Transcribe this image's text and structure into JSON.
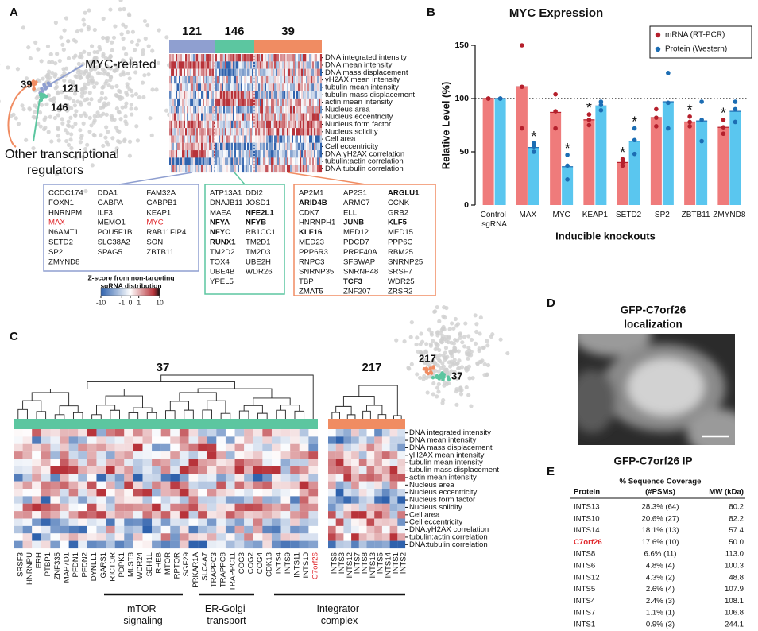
{
  "panel_a": {
    "label": "A",
    "cluster_counts": [
      121,
      146,
      39
    ],
    "cluster_colors": [
      "#8f9fd0",
      "#5cc6a0",
      "#f08c62"
    ],
    "scatter_labels": [
      39,
      121,
      146
    ],
    "myc_label": "MYC-related",
    "other_label": [
      "Other transcriptional",
      "regulators"
    ],
    "features": [
      "DNA integrated intensity",
      "DNA mean intensity",
      "DNA mass displacement",
      "γH2AX mean intensity",
      "tubulin mean intensity",
      "tubulin mass displacement",
      "actin mean intensity",
      "Nucleus area",
      "Nucleus eccentricity",
      "Nucleus form factor",
      "Nucleus solidity",
      "Cell area",
      "Cell eccentricity",
      "DNA:γH2AX correlation",
      "tubulin:actin correlation",
      "DNA:tubulin correlation"
    ],
    "gene_boxes": [
      {
        "color": "#8f9fd0",
        "columns": [
          [
            "CCDC174",
            "FOXN1",
            "HNRNPM",
            {
              "text": "MAX",
              "color": "#e0262b"
            },
            "N6AMT1",
            "SETD2",
            "SP2",
            "ZMYND8"
          ],
          [
            "DDA1",
            "GABPA",
            "ILF3",
            "MEMO1",
            "POU5F1B",
            "SLC38A2",
            "SPAG5"
          ],
          [
            "FAM32A",
            "GABPB1",
            "KEAP1",
            {
              "text": "MYC",
              "color": "#e0262b"
            },
            "RAB11FIP4",
            "SON",
            "ZBTB11"
          ]
        ]
      },
      {
        "color": "#5cc6a0",
        "columns": [
          [
            "ATP13A1",
            "DNAJB11",
            "MAEA",
            {
              "text": "NFYA",
              "bold": true
            },
            {
              "text": "NFYC",
              "bold": true
            },
            {
              "text": "RUNX1",
              "bold": true
            },
            "TM2D2",
            "TOX4",
            "UBE4B",
            "YPEL5"
          ],
          [
            "DDI2",
            "JOSD1",
            {
              "text": "NFE2L1",
              "bold": true
            },
            {
              "text": "NFYB",
              "bold": true
            },
            "RB1CC1",
            "TM2D1",
            "TM2D3",
            "UBE2H",
            "WDR26"
          ]
        ]
      },
      {
        "color": "#f08c62",
        "columns": [
          [
            "AP2M1",
            {
              "text": "ARID4B",
              "bold": true
            },
            "CDK7",
            "HNRNPH1",
            {
              "text": "KLF16",
              "bold": true
            },
            "MED23",
            "PPP6R3",
            "RNPC3",
            "SNRNP35",
            "TBP",
            "ZMAT5"
          ],
          [
            "AP2S1",
            "ARMC7",
            "ELL",
            {
              "text": "JUNB",
              "bold": true
            },
            "MED12",
            "PDCD7",
            "PRPF40A",
            "SFSWAP",
            "SNRNP48",
            {
              "text": "TCF3",
              "bold": true
            },
            "ZNF207"
          ],
          [
            {
              "text": "ARGLU1",
              "bold": true
            },
            "CCNK",
            "GRB2",
            {
              "text": "KLF5",
              "bold": true
            },
            "MED15",
            "PPP6C",
            "RBM25",
            "SNRNP25",
            "SRSF7",
            "WDR25",
            "ZRSR2"
          ]
        ]
      }
    ],
    "colorbar": {
      "title_lines": [
        "Z-score from non-targeting",
        "sgRNA distribution"
      ],
      "ticks": [
        -10,
        -1,
        0,
        1,
        10
      ],
      "scale": "symlog"
    }
  },
  "chart_data": {
    "type": "bar",
    "panel_label": "B",
    "title": "MYC Expression",
    "ylabel": "Relative Level (%)",
    "xlabel": "Inducible knockouts",
    "categories": [
      "Control sgRNA",
      "MAX",
      "MYC",
      "KEAP1",
      "SETD2",
      "SP2",
      "ZBTB11",
      "ZMYND8"
    ],
    "ylim": [
      0,
      150
    ],
    "yticks": [
      0,
      50,
      100,
      150
    ],
    "reference_line": 100,
    "legend": "top-right",
    "star_text": "*",
    "series": [
      {
        "name": "mRNA (RT-PCR)",
        "color": "#ef7b7b",
        "point_color": "#b5202c",
        "values": [
          100,
          111,
          87,
          80,
          40,
          82,
          78,
          73
        ],
        "replicates": [
          [
            100,
            100,
            100
          ],
          [
            150,
            111,
            72
          ],
          [
            104,
            88,
            72
          ],
          [
            85,
            80,
            75
          ],
          [
            43,
            40,
            37
          ],
          [
            90,
            82,
            74
          ],
          [
            83,
            78,
            74
          ],
          [
            80,
            73,
            67
          ]
        ],
        "stars": [
          3,
          4,
          6,
          7
        ]
      },
      {
        "name": "Protein (Western)",
        "color": "#5ac6ef",
        "point_color": "#1c6db3",
        "values": [
          100,
          54,
          36,
          93,
          60,
          97,
          79,
          88
        ],
        "replicates": [
          [
            100,
            100,
            100
          ],
          [
            58,
            55,
            50
          ],
          [
            47,
            37,
            24
          ],
          [
            97,
            94,
            89
          ],
          [
            72,
            61,
            48
          ],
          [
            124,
            96,
            72
          ],
          [
            97,
            80,
            60
          ],
          [
            97,
            90,
            78
          ]
        ],
        "stars": [
          1,
          2,
          4
        ]
      }
    ]
  },
  "panel_c": {
    "label": "C",
    "cluster_counts": [
      37,
      217
    ],
    "cluster_colors": [
      "#5cc6a0",
      "#f08c62"
    ],
    "scatter_labels": [
      217,
      37
    ],
    "features": [
      "DNA integrated intensity",
      "DNA mean intensity",
      "DNA mass displacement",
      "γH2AX mean intensity",
      "tubulin mean intensity",
      "tubulin mass displacement",
      "actin mean intensity",
      "Nucleus area",
      "Nucleus eccentricity",
      "Nucleus form factor",
      "Nucleus solidity",
      "Cell area",
      "Cell eccentricity",
      "DNA:γH2AX correlation",
      "tubulin:actin correlation",
      "DNA:tubulin correlation"
    ],
    "genes_left": [
      "SRSF3",
      "HNRNPU",
      "ERH",
      "PTBP1",
      "ZNF335",
      "MAP7D1",
      "PFDN1",
      "PFDN2",
      "DYNLL1",
      "GARS1",
      "RICTOR",
      "PDPK1",
      "MLST8",
      "WDR24",
      "SEH1L",
      "RHEB",
      "MTOR",
      "RPTOR",
      "SGF29",
      "PRKAR1A",
      "SLC4A7",
      "TRAPPC3",
      "TRAPPC8",
      "TRAPPC11",
      "COG3",
      "COG2",
      "COG4",
      "CDK13",
      "INTS4",
      "INTS9",
      "INTS11",
      "INTS10",
      {
        "text": "C7orf26",
        "color": "#e0262b"
      }
    ],
    "genes_right": [
      "INTS6",
      "INTS3",
      "INTS12",
      "INTS7",
      "INTS8",
      "INTS13",
      "INTS5",
      "INTS14",
      "INTS1",
      "INTS2"
    ],
    "groups": [
      "mTOR signaling",
      "ER-Golgi transport",
      "Integrator complex"
    ]
  },
  "panel_d": {
    "label": "D",
    "title_lines": [
      "GFP-C7orf26",
      "localization"
    ]
  },
  "panel_e": {
    "label": "E",
    "title": "GFP-C7orf26 IP",
    "header": {
      "protein": "Protein",
      "coverage": [
        "% Sequence Coverage",
        "(#PSMs)"
      ],
      "mw": "MW (kDa)"
    },
    "rows": [
      [
        "INTS13",
        "28.3% (64)",
        "80.2"
      ],
      [
        "INTS10",
        "20.6% (27)",
        "82.2"
      ],
      [
        "INTS14",
        "18.1% (13)",
        "57.4"
      ],
      [
        "C7orf26",
        "17.6% (10)",
        "50.0"
      ],
      [
        "INTS8",
        "6.6% (11)",
        "113.0"
      ],
      [
        "INTS6",
        "4.8% (4)",
        "100.3"
      ],
      [
        "INTS12",
        "4.3% (2)",
        "48.8"
      ],
      [
        "INTS5",
        "2.6% (4)",
        "107.9"
      ],
      [
        "INTS4",
        "2.4% (3)",
        "108.1"
      ],
      [
        "INTS7",
        "1.1% (1)",
        "106.8"
      ],
      [
        "INTS1",
        "0.9% (3)",
        "244.1"
      ]
    ],
    "highlight_row": 3,
    "highlight_color": "#e0262b"
  }
}
